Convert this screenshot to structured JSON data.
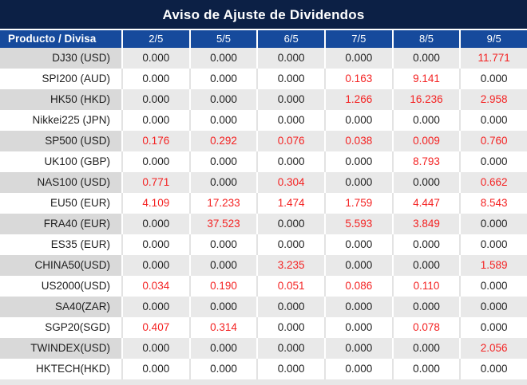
{
  "title": "Aviso de Ajuste de Dividendos",
  "colors": {
    "title_bg": "#0c2045",
    "header_bg": "#164a9c",
    "header_text": "#ffffff",
    "row_gray_product": "#d9d9d9",
    "row_gray_value": "#e9e9e9",
    "row_white": "#ffffff",
    "value_text": "#1f1f1f",
    "value_red": "#f42222"
  },
  "chart_data": {
    "type": "table",
    "title": "Aviso de Ajuste de Dividendos",
    "columns": [
      "Producto / Divisa",
      "2/5",
      "5/5",
      "6/5",
      "7/5",
      "8/5",
      "9/5"
    ],
    "products": [
      "DJ30 (USD)",
      "SPI200 (AUD)",
      "HK50 (HKD)",
      "Nikkei225 (JPN)",
      "SP500 (USD)",
      "UK100 (GBP)",
      "NAS100 (USD)",
      "EU50 (EUR)",
      "FRA40 (EUR)",
      "ES35 (EUR)",
      "CHINA50(USD)",
      "US2000(USD)",
      "SA40(ZAR)",
      "SGP20(SGD)",
      "TWINDEX(USD)",
      "HKTECH(HKD)"
    ],
    "values": [
      [
        "0.000",
        "0.000",
        "0.000",
        "0.000",
        "0.000",
        "11.771"
      ],
      [
        "0.000",
        "0.000",
        "0.000",
        "0.163",
        "9.141",
        "0.000"
      ],
      [
        "0.000",
        "0.000",
        "0.000",
        "1.266",
        "16.236",
        "2.958"
      ],
      [
        "0.000",
        "0.000",
        "0.000",
        "0.000",
        "0.000",
        "0.000"
      ],
      [
        "0.176",
        "0.292",
        "0.076",
        "0.038",
        "0.009",
        "0.760"
      ],
      [
        "0.000",
        "0.000",
        "0.000",
        "0.000",
        "8.793",
        "0.000"
      ],
      [
        "0.771",
        "0.000",
        "0.304",
        "0.000",
        "0.000",
        "0.662"
      ],
      [
        "4.109",
        "17.233",
        "1.474",
        "1.759",
        "4.447",
        "8.543"
      ],
      [
        "0.000",
        "37.523",
        "0.000",
        "5.593",
        "3.849",
        "0.000"
      ],
      [
        "0.000",
        "0.000",
        "0.000",
        "0.000",
        "0.000",
        "0.000"
      ],
      [
        "0.000",
        "0.000",
        "3.235",
        "0.000",
        "0.000",
        "1.589"
      ],
      [
        "0.034",
        "0.190",
        "0.051",
        "0.086",
        "0.110",
        "0.000"
      ],
      [
        "0.000",
        "0.000",
        "0.000",
        "0.000",
        "0.000",
        "0.000"
      ],
      [
        "0.407",
        "0.314",
        "0.000",
        "0.000",
        "0.078",
        "0.000"
      ],
      [
        "0.000",
        "0.000",
        "0.000",
        "0.000",
        "0.000",
        "2.056"
      ],
      [
        "0.000",
        "0.000",
        "0.000",
        "0.000",
        "0.000",
        "0.000"
      ]
    ],
    "red_flags": [
      [
        0,
        0,
        0,
        0,
        0,
        1
      ],
      [
        0,
        0,
        0,
        1,
        1,
        0
      ],
      [
        0,
        0,
        0,
        1,
        1,
        1
      ],
      [
        0,
        0,
        0,
        0,
        0,
        0
      ],
      [
        1,
        1,
        1,
        1,
        1,
        1
      ],
      [
        0,
        0,
        0,
        0,
        1,
        0
      ],
      [
        1,
        0,
        1,
        0,
        0,
        1
      ],
      [
        1,
        1,
        1,
        1,
        1,
        1
      ],
      [
        0,
        1,
        0,
        1,
        1,
        0
      ],
      [
        0,
        0,
        0,
        0,
        0,
        0
      ],
      [
        0,
        0,
        1,
        0,
        0,
        1
      ],
      [
        1,
        1,
        1,
        1,
        1,
        0
      ],
      [
        0,
        0,
        0,
        0,
        0,
        0
      ],
      [
        1,
        1,
        0,
        0,
        1,
        0
      ],
      [
        0,
        0,
        0,
        0,
        0,
        1
      ],
      [
        0,
        0,
        0,
        0,
        0,
        0
      ]
    ]
  }
}
